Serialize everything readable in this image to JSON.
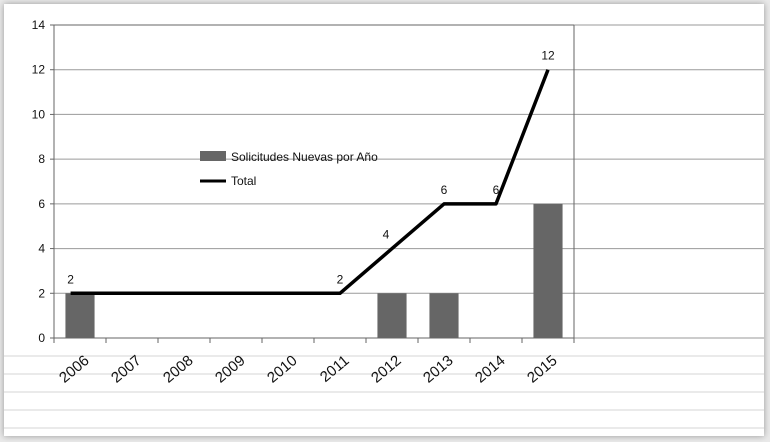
{
  "chart_data": {
    "type": "bar",
    "categories": [
      "2006",
      "2007",
      "2008",
      "2009",
      "2010",
      "2011",
      "2012",
      "2013",
      "2014",
      "2015"
    ],
    "series": [
      {
        "name": "Solicitudes Nuevas por Año",
        "type": "bar",
        "values": [
          2,
          0,
          0,
          0,
          0,
          0,
          2,
          2,
          0,
          6
        ]
      },
      {
        "name": "Total",
        "type": "line",
        "values": [
          2,
          2,
          2,
          2,
          2,
          2,
          4,
          6,
          6,
          12
        ]
      }
    ],
    "data_labels": [
      "2",
      "",
      "",
      "",
      "",
      "2",
      "4",
      "6",
      "6",
      "12"
    ],
    "ylim": [
      0,
      14
    ],
    "yticks": [
      "0",
      "2",
      "4",
      "6",
      "8",
      "10",
      "12",
      "14"
    ],
    "grid": true,
    "legend_position": "center-left",
    "colors": {
      "bar": "#666666",
      "line": "#000000",
      "grid": "#9a9a9a",
      "axis": "#666666"
    }
  }
}
